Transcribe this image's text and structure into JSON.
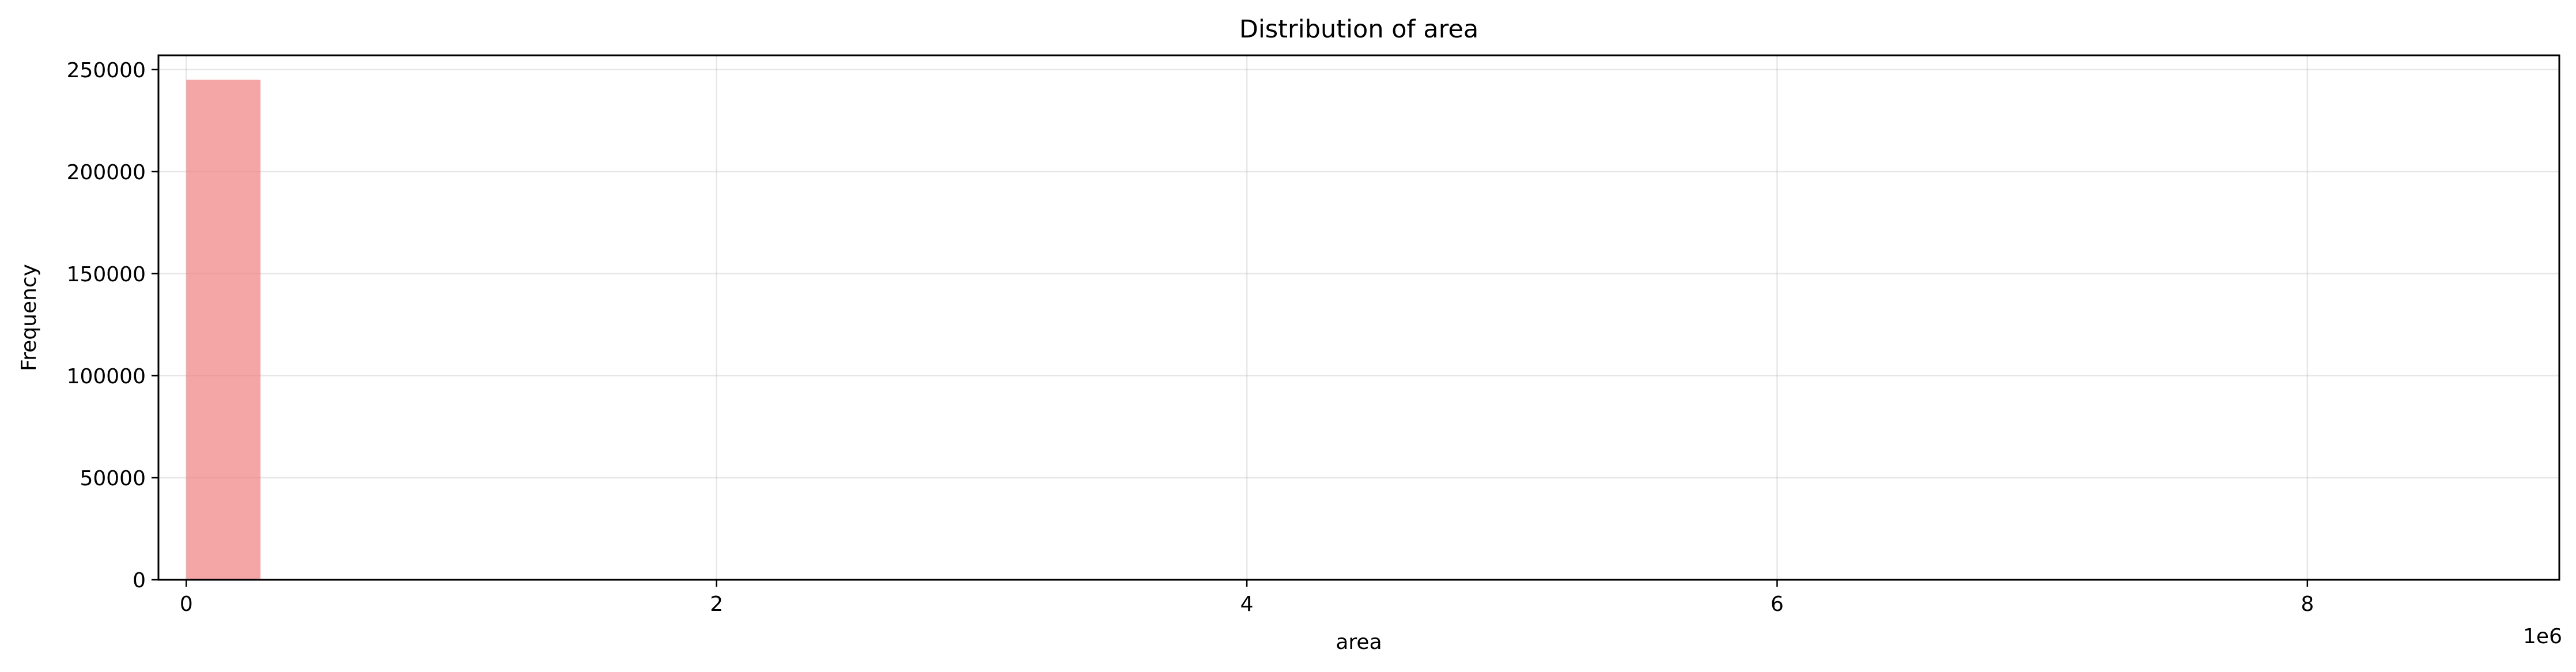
{
  "chart_data": {
    "type": "bar",
    "title": "Distribution of area",
    "xlabel": "area",
    "ylabel": "Frequency",
    "x_offset_label": "1e6",
    "x_scale_factor": 1000000,
    "xlim": [
      -0.105,
      8.95
    ],
    "ylim": [
      0,
      257000
    ],
    "x_ticks": [
      0,
      2,
      4,
      6,
      8
    ],
    "x_tick_labels": [
      "0",
      "2",
      "4",
      "6",
      "8"
    ],
    "y_ticks": [
      0,
      50000,
      100000,
      150000,
      200000,
      250000
    ],
    "y_tick_labels": [
      "0",
      "50000",
      "100000",
      "150000",
      "200000",
      "250000"
    ],
    "grid": true,
    "bar_color": "#f08080",
    "bar_alpha": 0.7,
    "bins": [
      {
        "x0": 0,
        "x1": 0.28,
        "count": 245000
      }
    ]
  }
}
